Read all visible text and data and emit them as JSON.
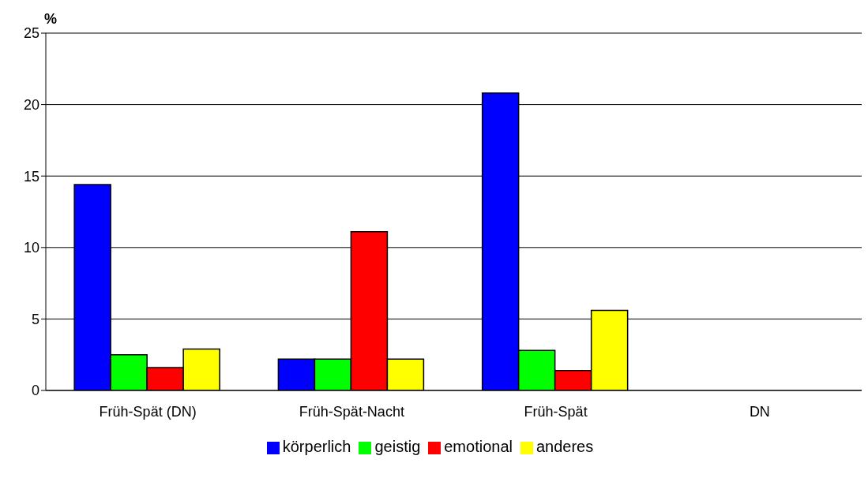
{
  "chart_data": {
    "type": "bar",
    "ylabel": "%",
    "categories": [
      "Früh-Spät (DN)",
      "Früh-Spät-Nacht",
      "Früh-Spät",
      "DN"
    ],
    "series": [
      {
        "name": "körperlich",
        "color": "#0000ff",
        "values": [
          14.4,
          2.2,
          20.8,
          0
        ]
      },
      {
        "name": "geistig",
        "color": "#00ff00",
        "values": [
          2.5,
          2.2,
          2.8,
          0
        ]
      },
      {
        "name": "emotional",
        "color": "#ff0000",
        "values": [
          1.6,
          11.1,
          1.4,
          0
        ]
      },
      {
        "name": "anderes",
        "color": "#ffff00",
        "values": [
          2.9,
          2.2,
          5.6,
          0
        ]
      }
    ],
    "ylim": [
      0,
      25
    ],
    "yticks": [
      0,
      5,
      10,
      15,
      20,
      25
    ],
    "grid": "y",
    "legend": "bottom"
  }
}
